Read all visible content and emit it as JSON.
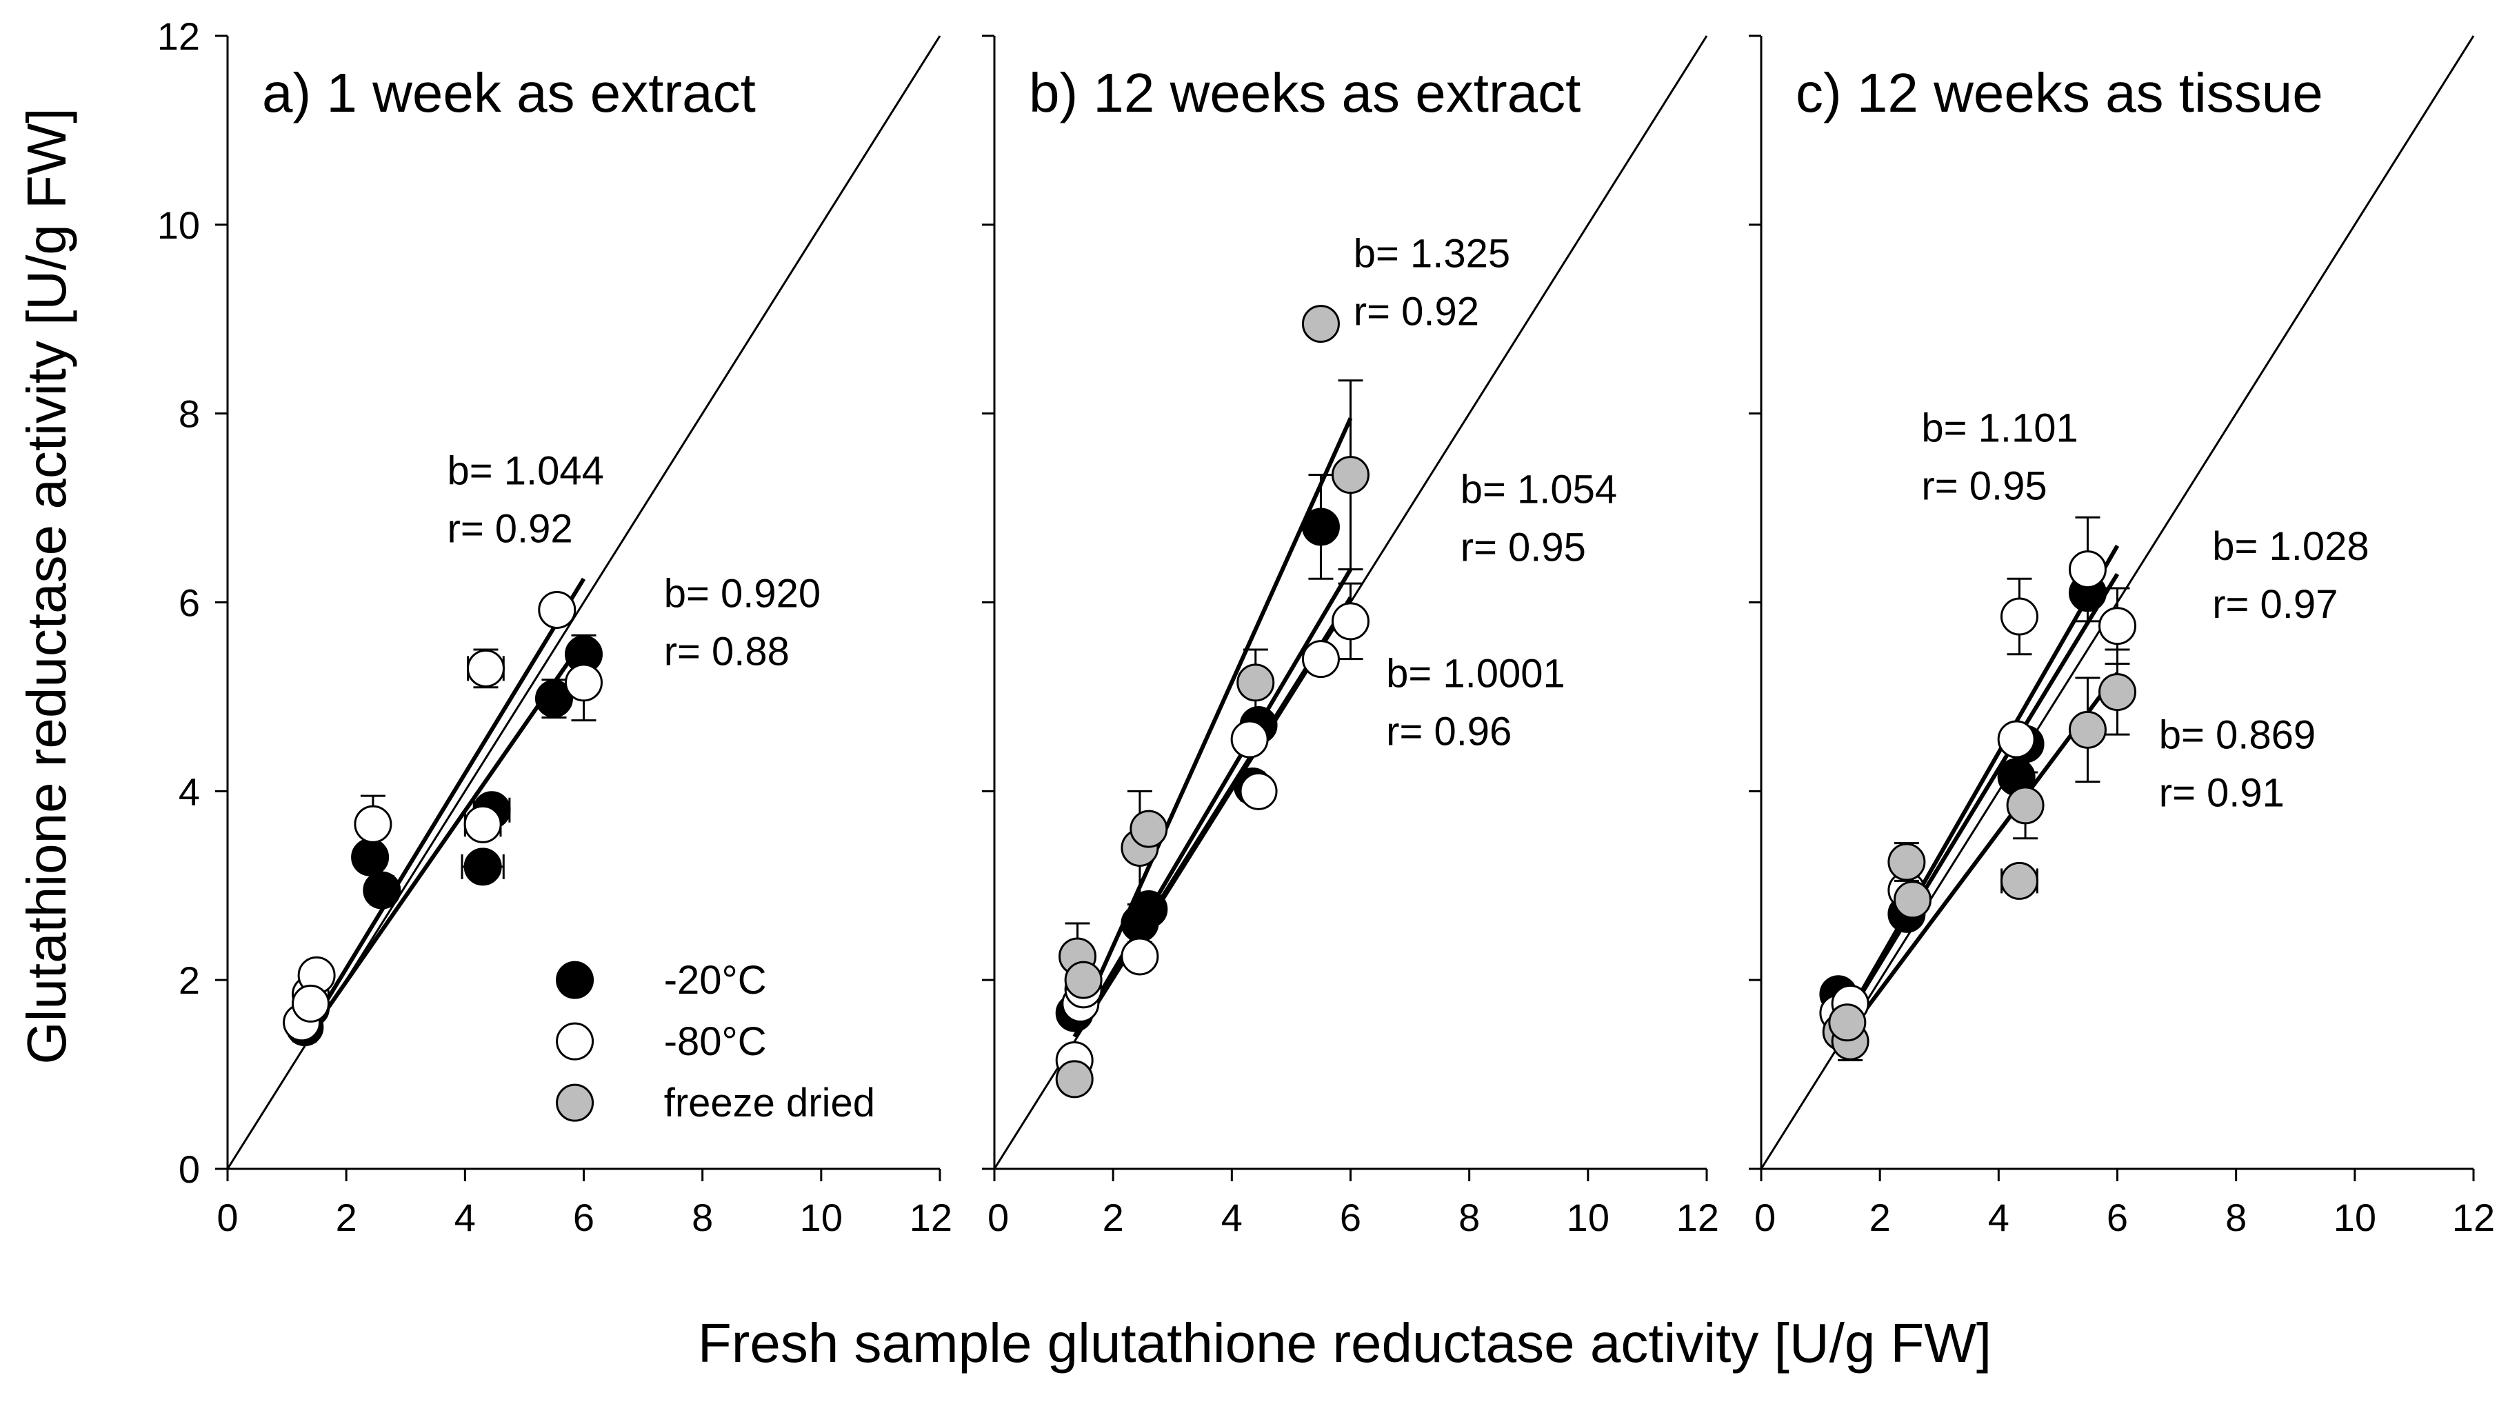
{
  "chart_data": {
    "type": "scatter",
    "ylabel": "Glutathione reductase activity [U/g FW]",
    "xlabel": "Fresh sample glutathione reductase activity [U/g FW]",
    "xlim": [
      0,
      12
    ],
    "ylim": [
      0,
      12
    ],
    "xticks": [
      0,
      2,
      4,
      6,
      8,
      10,
      12
    ],
    "yticks": [
      0,
      2,
      4,
      6,
      8,
      10,
      12
    ],
    "legend": {
      "position": "bottom-right of panel a",
      "entries": [
        {
          "label": "-20°C",
          "color": "#000000"
        },
        {
          "label": "-80°C",
          "color": "#ffffff"
        },
        {
          "label": "freeze dried",
          "color": "#bdbdbd"
        }
      ]
    },
    "panels": [
      {
        "title": "a) 1 week as extract",
        "series": [
          {
            "name": "-20°C",
            "color": "#000000",
            "points": [
              {
                "x": 1.3,
                "y": 1.5,
                "ye": 0.15,
                "xe": 0.0
              },
              {
                "x": 1.4,
                "y": 1.7,
                "ye": 0.0,
                "xe": 0.0
              },
              {
                "x": 2.4,
                "y": 3.3,
                "ye": 0.0,
                "xe": 0.0
              },
              {
                "x": 2.6,
                "y": 2.95,
                "ye": 0.15,
                "xe": 0.2
              },
              {
                "x": 4.3,
                "y": 3.2,
                "ye": 0.0,
                "xe": 0.35
              },
              {
                "x": 4.45,
                "y": 3.8,
                "ye": 0.0,
                "xe": 0.3
              },
              {
                "x": 5.5,
                "y": 4.98,
                "ye": 0.2,
                "xe": 0.0
              },
              {
                "x": 6.0,
                "y": 5.45,
                "ye": 0.2,
                "xe": 0.0
              }
            ]
          },
          {
            "name": "-80°C",
            "color": "#ffffff",
            "points": [
              {
                "x": 1.25,
                "y": 1.55,
                "ye": 0.0,
                "xe": 0.0
              },
              {
                "x": 1.4,
                "y": 1.85,
                "ye": 0.0,
                "xe": 0.0
              },
              {
                "x": 1.5,
                "y": 2.05,
                "ye": 0.0,
                "xe": 0.0
              },
              {
                "x": 1.4,
                "y": 1.75,
                "ye": 0.0,
                "xe": 0.0
              },
              {
                "x": 2.45,
                "y": 3.65,
                "ye": 0.3,
                "xe": 0.0
              },
              {
                "x": 4.3,
                "y": 3.65,
                "ye": 0.0,
                "xe": 0.3
              },
              {
                "x": 4.35,
                "y": 5.3,
                "ye": 0.2,
                "xe": 0.3
              },
              {
                "x": 5.55,
                "y": 5.92,
                "ye": 0.0,
                "xe": 0.0
              },
              {
                "x": 6.0,
                "y": 5.15,
                "ye": 0.4,
                "xe": 0.0
              }
            ]
          }
        ],
        "regressions": [
          {
            "x0": 1.3,
            "y0": 1.4,
            "x1": 6.0,
            "y1": 6.25
          },
          {
            "x0": 1.3,
            "y0": 1.35,
            "x1": 6.0,
            "y1": 5.6
          }
        ],
        "annotations": [
          {
            "b": "b= 1.044",
            "r": "r= 0.92",
            "bx": 3.7,
            "by": 7.25
          },
          {
            "b": "b= 0.920",
            "r": "r= 0.88",
            "bx": 7.35,
            "by": 5.95
          }
        ]
      },
      {
        "title": "b) 12 weeks as extract",
        "series": [
          {
            "name": "-20°C",
            "color": "#000000",
            "points": [
              {
                "x": 1.35,
                "y": 1.65,
                "ye": 0.0,
                "xe": 0.0
              },
              {
                "x": 2.45,
                "y": 2.6,
                "ye": 0.2,
                "xe": 0.0
              },
              {
                "x": 2.6,
                "y": 2.75,
                "ye": 0.0,
                "xe": 0.0
              },
              {
                "x": 4.35,
                "y": 4.05,
                "ye": 0.15,
                "xe": 0.0
              },
              {
                "x": 4.45,
                "y": 4.7,
                "ye": 0.0,
                "xe": 0.0
              },
              {
                "x": 5.5,
                "y": 6.8,
                "ye": 0.55,
                "xe": 0.0
              }
            ]
          },
          {
            "name": "-80°C",
            "color": "#ffffff",
            "points": [
              {
                "x": 1.35,
                "y": 1.15,
                "ye": 0.0,
                "xe": 0.0
              },
              {
                "x": 1.45,
                "y": 1.75,
                "ye": 0.0,
                "xe": 0.0
              },
              {
                "x": 1.5,
                "y": 1.9,
                "ye": 0.0,
                "xe": 0.0
              },
              {
                "x": 2.45,
                "y": 2.25,
                "ye": 0.0,
                "xe": 0.0
              },
              {
                "x": 4.3,
                "y": 4.55,
                "ye": 0.0,
                "xe": 0.0
              },
              {
                "x": 4.45,
                "y": 4.0,
                "ye": 0.0,
                "xe": 0.0
              },
              {
                "x": 5.5,
                "y": 5.4,
                "ye": 0.0,
                "xe": 0.0
              },
              {
                "x": 6.0,
                "y": 5.8,
                "ye": 0.4,
                "xe": 0.0
              }
            ]
          },
          {
            "name": "freeze dried",
            "color": "#bdbdbd",
            "points": [
              {
                "x": 1.35,
                "y": 0.95,
                "ye": 0.0,
                "xe": 0.0
              },
              {
                "x": 1.4,
                "y": 2.25,
                "ye": 0.35,
                "xe": 0.0
              },
              {
                "x": 1.5,
                "y": 2.0,
                "ye": 0.0,
                "xe": 0.0
              },
              {
                "x": 2.45,
                "y": 3.4,
                "ye": 0.6,
                "xe": 0.0
              },
              {
                "x": 2.6,
                "y": 3.6,
                "ye": 0.0,
                "xe": 0.0
              },
              {
                "x": 4.4,
                "y": 5.15,
                "ye": 0.35,
                "xe": 0.0
              },
              {
                "x": 5.5,
                "y": 8.95,
                "ye": 0.0,
                "xe": 0.0
              },
              {
                "x": 6.0,
                "y": 7.35,
                "ye": 1.0,
                "xe": 0.0
              }
            ]
          }
        ],
        "regressions": [
          {
            "x0": 1.35,
            "y0": 1.45,
            "x1": 6.0,
            "y1": 7.95
          },
          {
            "x0": 1.35,
            "y0": 1.4,
            "x1": 6.0,
            "y1": 6.35
          },
          {
            "x0": 1.35,
            "y0": 1.4,
            "x1": 6.0,
            "y1": 6.05
          }
        ],
        "annotations": [
          {
            "b": "b= 1.325",
            "r": "r= 0.92",
            "bx": 6.05,
            "by": 9.55
          },
          {
            "b": "b= 1.054",
            "r": "r= 0.95",
            "bx": 7.85,
            "by": 7.05
          },
          {
            "b": "b= 1.0001",
            "r": "r= 0.96",
            "bx": 6.6,
            "by": 5.1
          }
        ]
      },
      {
        "title": "c) 12 weeks as tissue",
        "series": [
          {
            "name": "-20°C",
            "color": "#000000",
            "points": [
              {
                "x": 1.3,
                "y": 1.85,
                "ye": 0.0,
                "xe": 0.0
              },
              {
                "x": 2.45,
                "y": 2.7,
                "ye": 0.0,
                "xe": 0.0
              },
              {
                "x": 4.3,
                "y": 4.15,
                "ye": 0.0,
                "xe": 0.0
              },
              {
                "x": 4.45,
                "y": 4.5,
                "ye": 0.0,
                "xe": 0.0
              },
              {
                "x": 5.5,
                "y": 6.1,
                "ye": 0.0,
                "xe": 0.0
              }
            ]
          },
          {
            "name": "-80°C",
            "color": "#ffffff",
            "points": [
              {
                "x": 1.3,
                "y": 1.65,
                "ye": 0.0,
                "xe": 0.0
              },
              {
                "x": 1.5,
                "y": 1.75,
                "ye": 0.0,
                "xe": 0.0
              },
              {
                "x": 2.45,
                "y": 2.95,
                "ye": 0.0,
                "xe": 0.0
              },
              {
                "x": 4.3,
                "y": 4.55,
                "ye": 0.0,
                "xe": 0.0
              },
              {
                "x": 4.35,
                "y": 5.85,
                "ye": 0.4,
                "xe": 0.0
              },
              {
                "x": 5.5,
                "y": 6.35,
                "ye": 0.55,
                "xe": 0.0
              },
              {
                "x": 6.0,
                "y": 5.75,
                "ye": 0.4,
                "xe": 0.0
              }
            ]
          },
          {
            "name": "freeze dried",
            "color": "#bdbdbd",
            "points": [
              {
                "x": 1.35,
                "y": 1.45,
                "ye": 0.0,
                "xe": 0.0
              },
              {
                "x": 1.5,
                "y": 1.35,
                "ye": 0.2,
                "xe": 0.0
              },
              {
                "x": 1.45,
                "y": 1.55,
                "ye": 0.0,
                "xe": 0.0
              },
              {
                "x": 2.45,
                "y": 3.25,
                "ye": 0.2,
                "xe": 0.0
              },
              {
                "x": 2.55,
                "y": 2.85,
                "ye": 0.0,
                "xe": 0.0
              },
              {
                "x": 4.35,
                "y": 3.05,
                "ye": 0.0,
                "xe": 0.3
              },
              {
                "x": 4.45,
                "y": 3.85,
                "ye": 0.35,
                "xe": 0.0
              },
              {
                "x": 5.5,
                "y": 4.65,
                "ye": 0.55,
                "xe": 0.0
              },
              {
                "x": 6.0,
                "y": 5.05,
                "ye": 0.45,
                "xe": 0.0
              }
            ]
          }
        ],
        "regressions": [
          {
            "x0": 1.3,
            "y0": 1.45,
            "x1": 6.0,
            "y1": 6.6
          },
          {
            "x0": 1.3,
            "y0": 1.45,
            "x1": 6.0,
            "y1": 6.3
          },
          {
            "x0": 1.3,
            "y0": 1.3,
            "x1": 6.0,
            "y1": 5.25
          }
        ],
        "annotations": [
          {
            "b": "b= 1.101",
            "r": "r= 0.95",
            "bx": 2.7,
            "by": 7.7
          },
          {
            "b": "b= 1.028",
            "r": "r= 0.97",
            "bx": 7.6,
            "by": 6.45
          },
          {
            "b": "b= 0.869",
            "r": "r= 0.91",
            "bx": 6.7,
            "by": 4.45
          }
        ]
      }
    ]
  }
}
